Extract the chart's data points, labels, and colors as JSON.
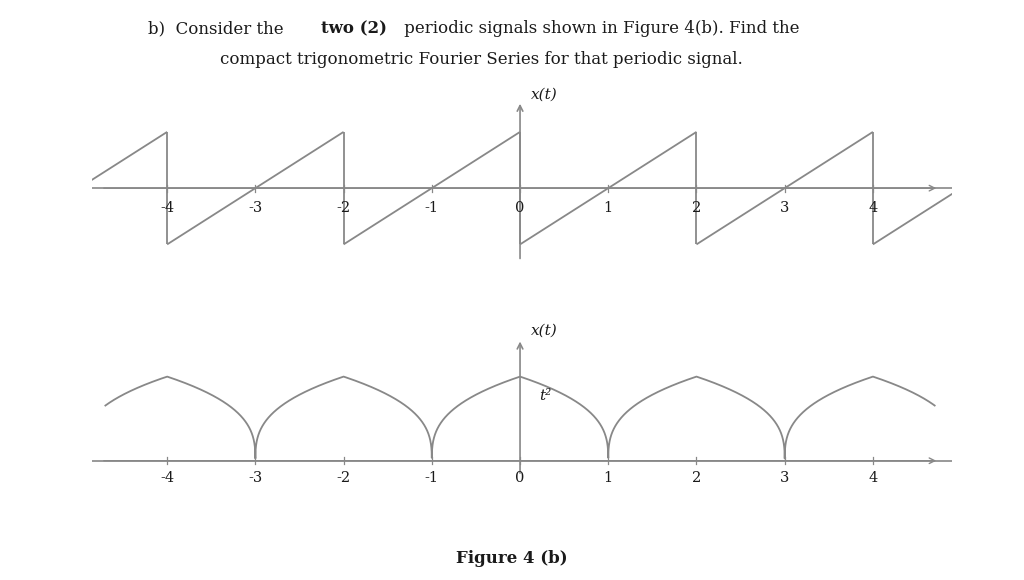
{
  "fig_label": "Figure 4 (b)",
  "top_ylabel": "x(t)",
  "bottom_ylabel": "x(t)",
  "bottom_annotation": "t²",
  "x_ticks": [
    -4,
    -3,
    -2,
    -1,
    0,
    1,
    2,
    3,
    4
  ],
  "background_color": "#ffffff",
  "line_color": "#888888",
  "axis_color": "#888888",
  "text_color": "#1a1a1a",
  "title_normal1": "b)  Consider the ",
  "title_bold": "two (2)",
  "title_normal2": " periodic signals shown in Figure 4(b). Find the",
  "title_line2": "compact trigonometric Fourier Series for that periodic signal.",
  "sawtooth_period": 2.0,
  "cusp_period": 2.0
}
